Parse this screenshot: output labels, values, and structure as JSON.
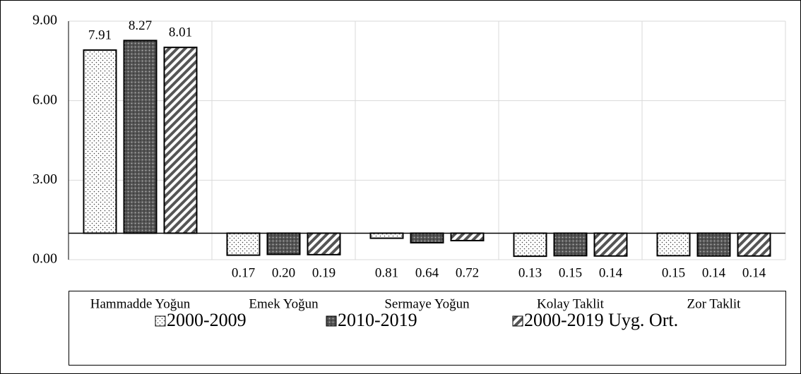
{
  "chart_data": {
    "type": "bar",
    "categories": [
      "Hammadde Yoğun",
      "Emek Yoğun",
      "Sermaye Yoğun",
      "Kolay Taklit",
      "Zor Taklit"
    ],
    "baseline": 1,
    "series": [
      {
        "name": "2000-2009",
        "pattern": "dots",
        "color": "#ffffff",
        "values": [
          7.91,
          0.17,
          0.81,
          0.13,
          0.15
        ],
        "value_labels": [
          "7.91",
          "0.17",
          "0.81",
          "0.13",
          "0.15"
        ]
      },
      {
        "name": "2010-2019",
        "pattern": "dark-dots",
        "color": "#595959",
        "values": [
          8.27,
          0.2,
          0.64,
          0.15,
          0.14
        ],
        "value_labels": [
          "8.27",
          "0.20",
          "0.64",
          "0.15",
          "0.14"
        ]
      },
      {
        "name": "2000-2019 Uyg. Ort.",
        "pattern": "stripes",
        "color": "#ffffff",
        "values": [
          8.01,
          0.19,
          0.72,
          0.14,
          0.14
        ],
        "value_labels": [
          "8.01",
          "0.19",
          "0.72",
          "0.14",
          "0.14"
        ]
      }
    ],
    "ylim": [
      0,
      9
    ],
    "yticks": [
      {
        "value": 0,
        "label": "0.00"
      },
      {
        "value": 3,
        "label": "3.00"
      },
      {
        "value": 6,
        "label": "6.00"
      },
      {
        "value": 9,
        "label": "9.00"
      }
    ],
    "grid": true,
    "legend": "bottom"
  }
}
